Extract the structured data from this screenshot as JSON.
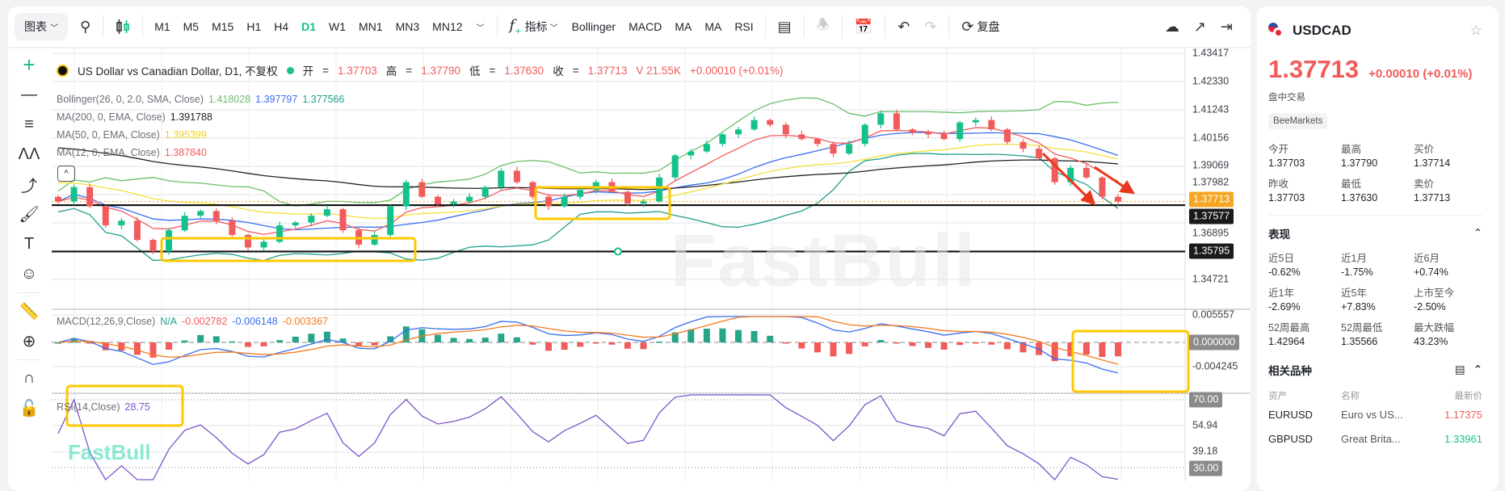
{
  "toolbar": {
    "chart_menu": "图表",
    "timeframes": [
      "M1",
      "M5",
      "M15",
      "H1",
      "H4",
      "D1",
      "W1",
      "MN1",
      "MN3",
      "MN12"
    ],
    "active_timeframe": "D1",
    "indicators_label": "指标",
    "indicator_shortcuts": [
      "Bollinger",
      "MACD",
      "MA",
      "MA",
      "RSI"
    ],
    "replay_label": "复盘"
  },
  "chart": {
    "title": "US Dollar vs Canadian Dollar, D1, 不复权",
    "ohlc": {
      "open_label": "开",
      "open": "1.37703",
      "high_label": "高",
      "high": "1.37790",
      "low_label": "低",
      "low": "1.37630",
      "close_label": "收",
      "close": "1.37713"
    },
    "volume": "V 21.55K",
    "change": "+0.00010 (+0.01%)",
    "legends": {
      "bollinger": {
        "label": "Bollinger(26, 0, 2.0, SMA, Close)",
        "upper": "1.418028",
        "middle": "1.397797",
        "lower": "1.377566"
      },
      "ma200": {
        "label": "MA(200, 0, EMA, Close)",
        "value": "1.391788"
      },
      "ma50": {
        "label": "MA(50, 0, EMA, Close)",
        "value": "1.395399"
      },
      "ma12": {
        "label": "MA(12, 0, EMA, Close)",
        "value": "1.387840"
      },
      "macd": {
        "label": "MACD(12,26,9,Close)",
        "na": "N/A",
        "hist": "-0.002782",
        "macd": "-0.006148",
        "signal": "-0.003367"
      },
      "rsi": {
        "label": "RSI(14,Close)",
        "value": "28.75"
      }
    },
    "price_axis": [
      "1.43417",
      "1.42330",
      "1.41243",
      "1.40156",
      "1.39069",
      "1.37982",
      "1.36895",
      "1.34721"
    ],
    "current_price_tag": "1.37713",
    "hline_tags": [
      "1.37577",
      "1.35795"
    ],
    "macd_axis": [
      "0.005557",
      "0.000000",
      "-0.004245"
    ],
    "rsi_axis": [
      "70.00",
      "54.94",
      "39.18",
      "30.00"
    ],
    "closes": [
      1.3772,
      1.3827,
      1.3753,
      1.368,
      1.3698,
      1.3624,
      1.358,
      1.3661,
      1.3717,
      1.3735,
      1.3698,
      1.3643,
      1.3595,
      1.3617,
      1.368,
      1.3691,
      1.3717,
      1.3742,
      1.3661,
      1.3606,
      1.3643,
      1.3753,
      1.3846,
      1.379,
      1.3761,
      1.3772,
      1.379,
      1.3827,
      1.389,
      1.3846,
      1.379,
      1.3753,
      1.379,
      1.3816,
      1.3846,
      1.3809,
      1.3764,
      1.3772,
      1.3864,
      1.3949,
      1.3964,
      1.3993,
      1.403,
      1.4049,
      1.4085,
      1.4067,
      1.403,
      1.4012,
      1.3993,
      1.3956,
      1.3993,
      1.4067,
      1.4111,
      1.4049,
      1.4037,
      1.403,
      1.4012,
      1.4076,
      1.4085,
      1.4049,
      1.4001,
      1.3975,
      1.3938,
      1.3846,
      1.3901,
      1.3864,
      1.379,
      1.37713
    ],
    "colors": {
      "up": "#14c08c",
      "down": "#f25b5b",
      "bb_upper": "#6cbf6c",
      "bb_mid": "#3a6ff0",
      "bb_lower": "#20a08a",
      "ma200": "#222222",
      "ma50": "#f5e13a",
      "ma12": "#f25b5b",
      "macd": "#3a6ff0",
      "signal": "#f57a20",
      "rsi": "#7b55c9",
      "highlight": "#ffc800",
      "arrow": "#e8391e",
      "price_tag": "#f5a623"
    }
  },
  "watermark": "FastBull",
  "panel": {
    "symbol": "USDCAD",
    "price": "1.37713",
    "change": "+0.00010",
    "change_pct": "(+0.01%)",
    "session": "盘中交易",
    "broker": "BeeMarkets",
    "stats": [
      {
        "label": "今开",
        "value": "1.37703",
        "tone": ""
      },
      {
        "label": "最高",
        "value": "1.37790",
        "tone": ""
      },
      {
        "label": "买价",
        "value": "1.37714",
        "tone": "green"
      },
      {
        "label": "昨收",
        "value": "1.37703",
        "tone": ""
      },
      {
        "label": "最低",
        "value": "1.37630",
        "tone": ""
      },
      {
        "label": "卖价",
        "value": "1.37713",
        "tone": "red"
      }
    ],
    "performance_title": "表现",
    "performance": [
      {
        "label": "近5日",
        "value": "-0.62%",
        "tone": ""
      },
      {
        "label": "近1月",
        "value": "-1.75%",
        "tone": ""
      },
      {
        "label": "近6月",
        "value": "+0.74%",
        "tone": ""
      },
      {
        "label": "近1年",
        "value": "-2.69%",
        "tone": ""
      },
      {
        "label": "近5年",
        "value": "+7.83%",
        "tone": ""
      },
      {
        "label": "上市至今",
        "value": "-2.50%",
        "tone": ""
      },
      {
        "label": "52周最高",
        "value": "1.42964",
        "tone": ""
      },
      {
        "label": "52周最低",
        "value": "1.35566",
        "tone": ""
      },
      {
        "label": "最大跌幅",
        "value": "43.23%",
        "tone": "green"
      }
    ],
    "related_title": "相关品种",
    "related_headers": [
      "资产",
      "名称",
      "最新价"
    ],
    "related": [
      {
        "asset": "EURUSD",
        "name": "Euro vs US...",
        "price": "1.17375",
        "tone": "red"
      },
      {
        "asset": "GBPUSD",
        "name": "Great Brita...",
        "price": "1.33961",
        "tone": "green"
      }
    ]
  }
}
